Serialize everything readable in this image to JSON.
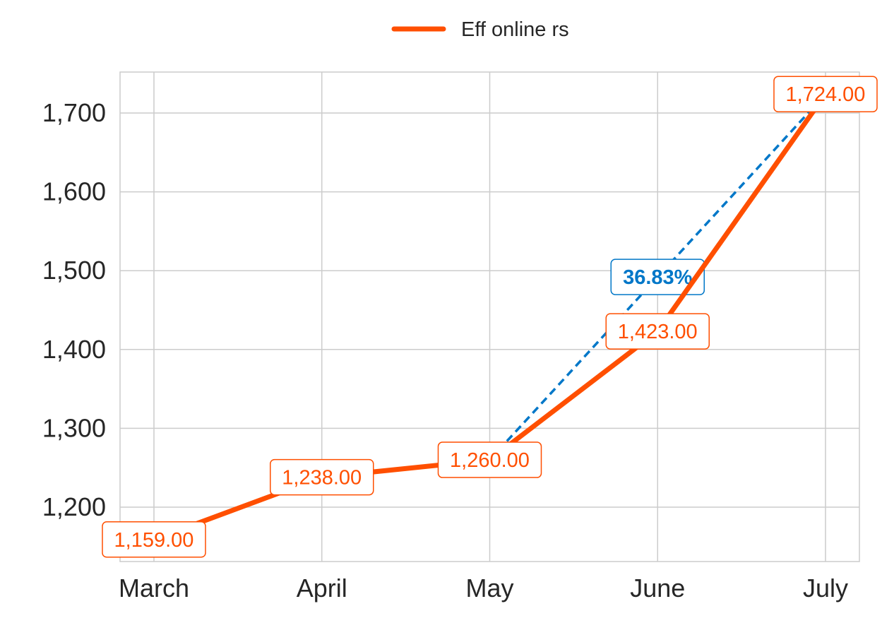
{
  "colors": {
    "series": "#FF4F00",
    "growth": "#0077C8",
    "grid": "#CCCCCC",
    "axis_text": "#262626"
  },
  "chart_data": {
    "type": "line",
    "categories": [
      "March",
      "April",
      "May",
      "June",
      "July"
    ],
    "series": [
      {
        "name": "Eff online rs",
        "values": [
          1159,
          1238,
          1260,
          1423,
          1724
        ],
        "labels": [
          "1,159.00",
          "1,238.00",
          "1,260.00",
          "1,423.00",
          "1,724.00"
        ]
      }
    ],
    "y_ticks": [
      1200,
      1300,
      1400,
      1500,
      1600,
      1700
    ],
    "y_tick_labels": [
      "1,200",
      "1,300",
      "1,400",
      "1,500",
      "1,600",
      "1,700"
    ],
    "ylim": [
      1131,
      1752
    ],
    "grid": true,
    "legend_position": "top-center",
    "growth_annotation": {
      "from_category": "May",
      "to_category": "July",
      "label": "36.83%"
    }
  }
}
